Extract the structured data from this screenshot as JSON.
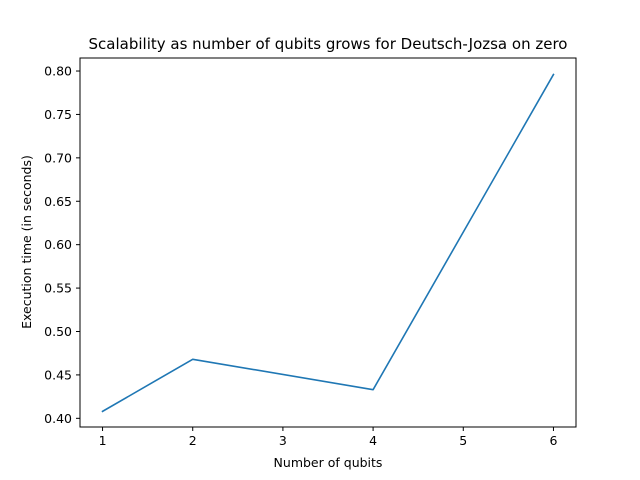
{
  "chart_data": {
    "type": "line",
    "title": "Scalability as number of qubits grows for Deutsch-Jozsa on zero",
    "xlabel": "Number of qubits",
    "ylabel": "Execution time (in seconds)",
    "x": [
      1,
      2,
      4,
      6
    ],
    "series": [
      {
        "values": [
          0.408,
          0.468,
          0.433,
          0.796
        ],
        "color": "#1f77b4"
      }
    ],
    "xlim": [
      0.75,
      6.25
    ],
    "ylim": [
      0.39,
      0.815
    ],
    "xticks": [
      1,
      2,
      3,
      4,
      5,
      6
    ],
    "xtick_labels": [
      "1",
      "2",
      "3",
      "4",
      "5",
      "6"
    ],
    "yticks": [
      0.4,
      0.45,
      0.5,
      0.55,
      0.6,
      0.65,
      0.7,
      0.75,
      0.8
    ],
    "ytick_labels": [
      "0.40",
      "0.45",
      "0.50",
      "0.55",
      "0.60",
      "0.65",
      "0.70",
      "0.75",
      "0.80"
    ],
    "grid": false,
    "legend": "none"
  }
}
